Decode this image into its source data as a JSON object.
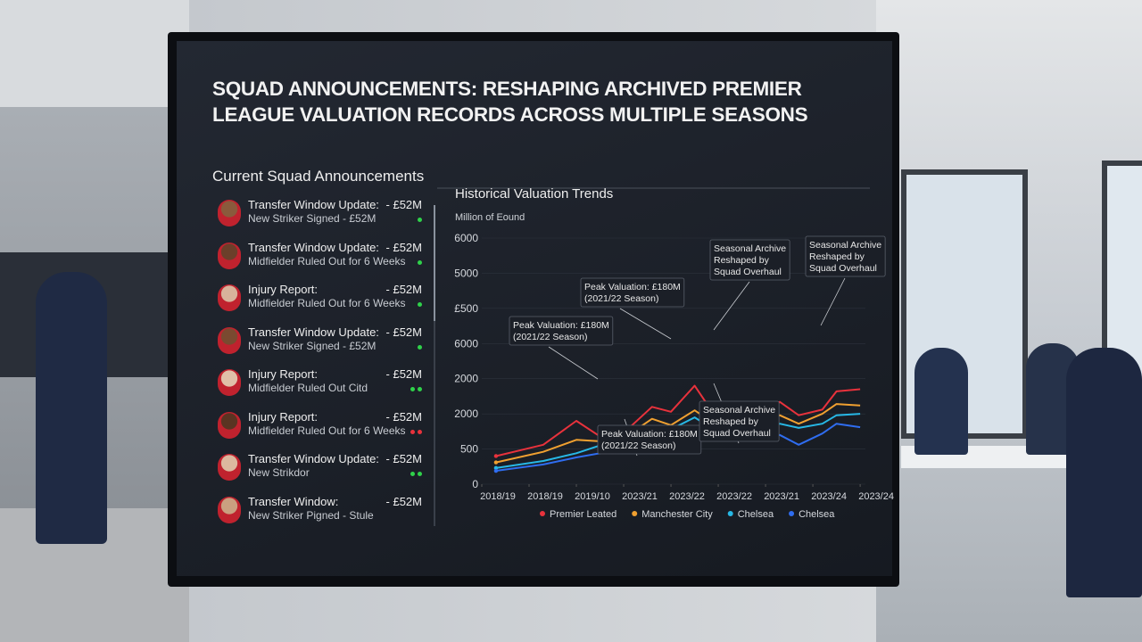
{
  "header": {
    "title": "SQUAD ANNOUNCEMENTS: RESHAPING ARCHIVED PREMIER LEAGUE VALUATION RECORDS ACROSS MULTIPLE SEASONS"
  },
  "announcements": {
    "title": "Current Squad Announcements",
    "items": [
      {
        "title": "Transfer Window Update:",
        "subtitle": "New Striker Signed - £52M",
        "value": "- £52M",
        "dots": [
          "#2fd14a"
        ]
      },
      {
        "title": "Transfer Window Update:",
        "subtitle": "Midfielder Ruled Out for 6 Weeks",
        "value": "- £52M",
        "dots": [
          "#2fd14a"
        ]
      },
      {
        "title": "Injury Report:",
        "subtitle": "Midfielder Ruled Out for 6 Weeks",
        "value": "- £52M",
        "dots": [
          "#2fd14a"
        ]
      },
      {
        "title": "Transfer Window Update:",
        "subtitle": "New Striker Signed - £52M",
        "value": "- £52M",
        "dots": [
          "#2fd14a"
        ]
      },
      {
        "title": "Injury Report:",
        "subtitle": "Midfielder Ruled Out Citd",
        "value": "- £52M",
        "dots": [
          "#2fd14a",
          "#2fd14a"
        ]
      },
      {
        "title": "Injury Report:",
        "subtitle": "Midfielder Ruled Out for 6 Weeks",
        "value": "- £52M",
        "dots": [
          "#e8323c",
          "#e8323c"
        ]
      },
      {
        "title": "Transfer Window Update:",
        "subtitle": "New Strikdor",
        "value": "- £52M",
        "dots": [
          "#2fd14a",
          "#2fd14a"
        ]
      },
      {
        "title": "Transfer Window:",
        "subtitle": "New Striker Pigned - Stule",
        "value": "- £52M",
        "dots": []
      }
    ]
  },
  "chart_data": {
    "type": "line",
    "title": "Historical Valuation Trends",
    "y_label": "Million of Eound",
    "xlim": [
      0,
      8.3
    ],
    "xticks": [
      {
        "value": 0,
        "label": "2018/19"
      },
      {
        "value": 1,
        "label": "2018/19"
      },
      {
        "value": 2,
        "label": "2019/10"
      },
      {
        "value": 3,
        "label": "2023/21"
      },
      {
        "value": 4,
        "label": "2023/22"
      },
      {
        "value": 5,
        "label": "2023/22"
      },
      {
        "value": 6,
        "label": "2023/21"
      },
      {
        "value": 7,
        "label": "2023/24"
      },
      {
        "value": 8,
        "label": "2023/24"
      }
    ],
    "ylim": [
      0,
      3500
    ],
    "yticks": [
      0,
      500,
      {
        "value": 1000,
        "label": "2000"
      },
      {
        "value": 1500,
        "label": "2000"
      },
      {
        "value": 2000,
        "label": "6000"
      },
      {
        "value": 2500,
        "label": "£500"
      },
      {
        "value": 3000,
        "label": "5000"
      },
      {
        "value": 3500,
        "label": "6000"
      }
    ],
    "x": [
      0.3,
      1.3,
      2,
      2.5,
      3.1,
      3.6,
      4,
      4.5,
      4.9,
      5.4,
      5.9,
      6.3,
      6.7,
      7.2,
      7.5,
      8
    ],
    "series": [
      {
        "name": "Premier Leated",
        "color": "#e8323c",
        "values": [
          400,
          560,
          900,
          680,
          790,
          1100,
          1030,
          1400,
          1000,
          1130,
          900,
          1170,
          980,
          1060,
          1320,
          1350
        ]
      },
      {
        "name": "Manchester City",
        "color": "#f0a030",
        "values": [
          310,
          460,
          630,
          610,
          700,
          930,
          840,
          1050,
          870,
          1000,
          870,
          980,
          860,
          1000,
          1140,
          1120
        ]
      },
      {
        "name": "Chelsea",
        "color": "#27b8e6",
        "values": [
          230,
          330,
          440,
          550,
          610,
          800,
          780,
          950,
          780,
          880,
          760,
          860,
          800,
          860,
          980,
          1000
        ]
      },
      {
        "name": "Chelsea",
        "color": "#2f6df0",
        "values": [
          190,
          280,
          380,
          440,
          540,
          650,
          600,
          810,
          650,
          720,
          630,
          700,
          560,
          720,
          860,
          810
        ]
      }
    ],
    "annotations": [
      {
        "lines": [
          "Peak Valuation: £180M",
          "(2021/22 Season)"
        ]
      },
      {
        "lines": [
          "Peak Valuation: £180M",
          "(2021/22 Season)"
        ]
      },
      {
        "lines": [
          "Peak Valuation: £180M",
          "(2021/22 Season)"
        ]
      },
      {
        "lines": [
          "Seasonal Archive",
          "Reshaped by",
          "Squad Overhaul"
        ]
      },
      {
        "lines": [
          "Seasonal Archive",
          "Reshaped by",
          "Squad Overhaul"
        ]
      },
      {
        "lines": [
          "Seasonal Archive",
          "Reshaped by",
          "Squad Overhaul"
        ]
      }
    ]
  }
}
